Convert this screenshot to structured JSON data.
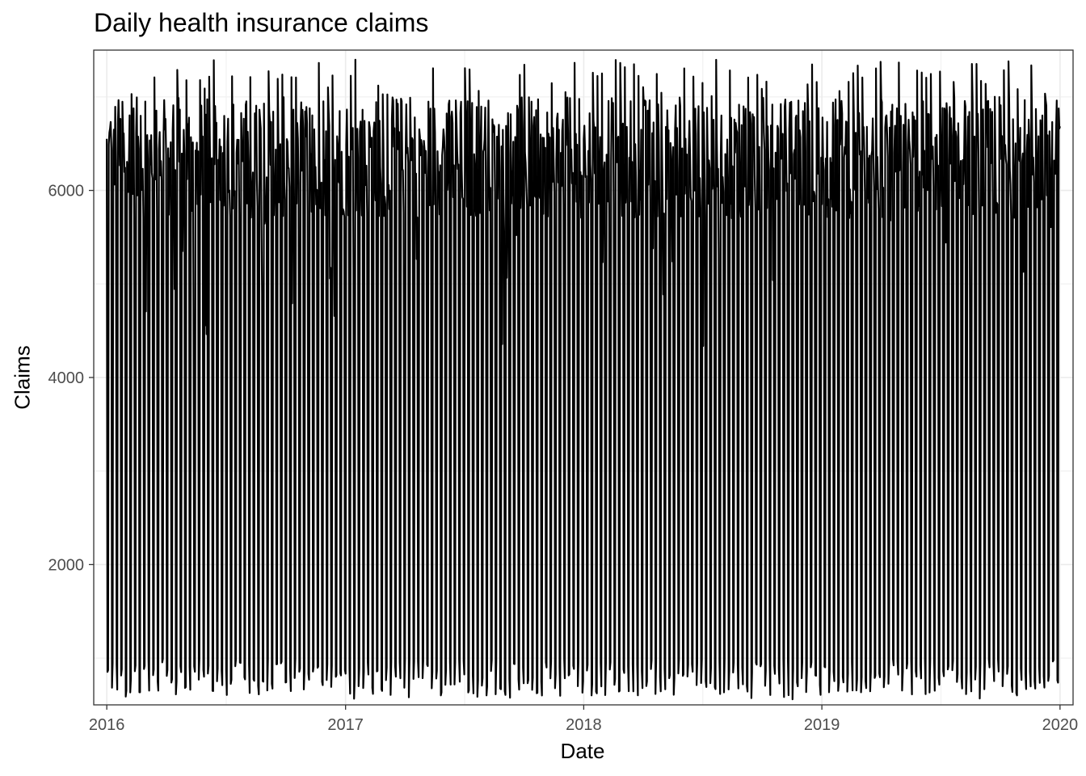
{
  "chart_data": {
    "type": "line",
    "title": "Daily health insurance claims",
    "xlabel": "Date",
    "ylabel": "Claims",
    "x_range": [
      "2016-01-01",
      "2020-01-01"
    ],
    "ylim": [
      500,
      7500
    ],
    "x_ticks": [
      "2016",
      "2017",
      "2018",
      "2019",
      "2020"
    ],
    "y_ticks": [
      2000,
      4000,
      6000
    ],
    "grid": true,
    "legend": "none",
    "line_color": "#000000",
    "series": [
      {
        "pattern": "weekly",
        "weekday_level_range": [
          6000,
          7300
        ],
        "weekend_level_range": [
          600,
          1000
        ],
        "typical_weekday": 6500,
        "typical_weekend": 850,
        "min": 550,
        "max": 7400
      }
    ]
  }
}
